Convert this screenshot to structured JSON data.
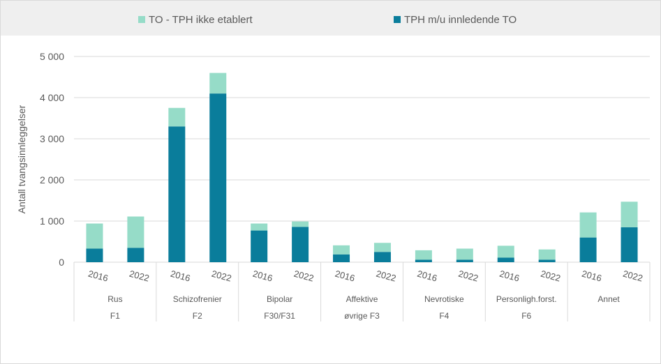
{
  "colors": {
    "to_not_established": "#96dcc8",
    "tph_with_to": "#0a7d9b",
    "grid": "#d9d9d9",
    "text": "#595959",
    "legend_bg": "#efefef"
  },
  "chart_data": {
    "type": "bar",
    "stacked": true,
    "ylabel": "Antall tvangsinnleggelser",
    "ylim": [
      0,
      5000
    ],
    "yticks": [
      "0",
      "1 000",
      "2 000",
      "3 000",
      "4 000",
      "5 000"
    ],
    "ytick_values": [
      0,
      1000,
      2000,
      3000,
      4000,
      5000
    ],
    "grid": true,
    "legend_position": "top",
    "groups": [
      {
        "name": "Rus",
        "code": "F1"
      },
      {
        "name": "Schizofrenier",
        "code": "F2"
      },
      {
        "name": "Bipolar",
        "code": "F30/F31"
      },
      {
        "name": "Affektive",
        "code": "øvrige F3"
      },
      {
        "name": "Nevrotiske",
        "code": "F4"
      },
      {
        "name": "Personligh.forst.",
        "code": "F6"
      },
      {
        "name": "Annet",
        "code": ""
      }
    ],
    "years": [
      "2016",
      "2022"
    ],
    "series": [
      {
        "name": "TPH m/u innledende TO",
        "color": "#0a7d9b",
        "values": [
          330,
          350,
          3300,
          4100,
          770,
          860,
          190,
          250,
          60,
          60,
          110,
          60,
          600,
          850
        ]
      },
      {
        "name": "TO - TPH ikke etablert",
        "color": "#96dcc8",
        "values": [
          610,
          760,
          450,
          500,
          170,
          130,
          220,
          220,
          230,
          270,
          290,
          250,
          610,
          620
        ]
      }
    ]
  }
}
